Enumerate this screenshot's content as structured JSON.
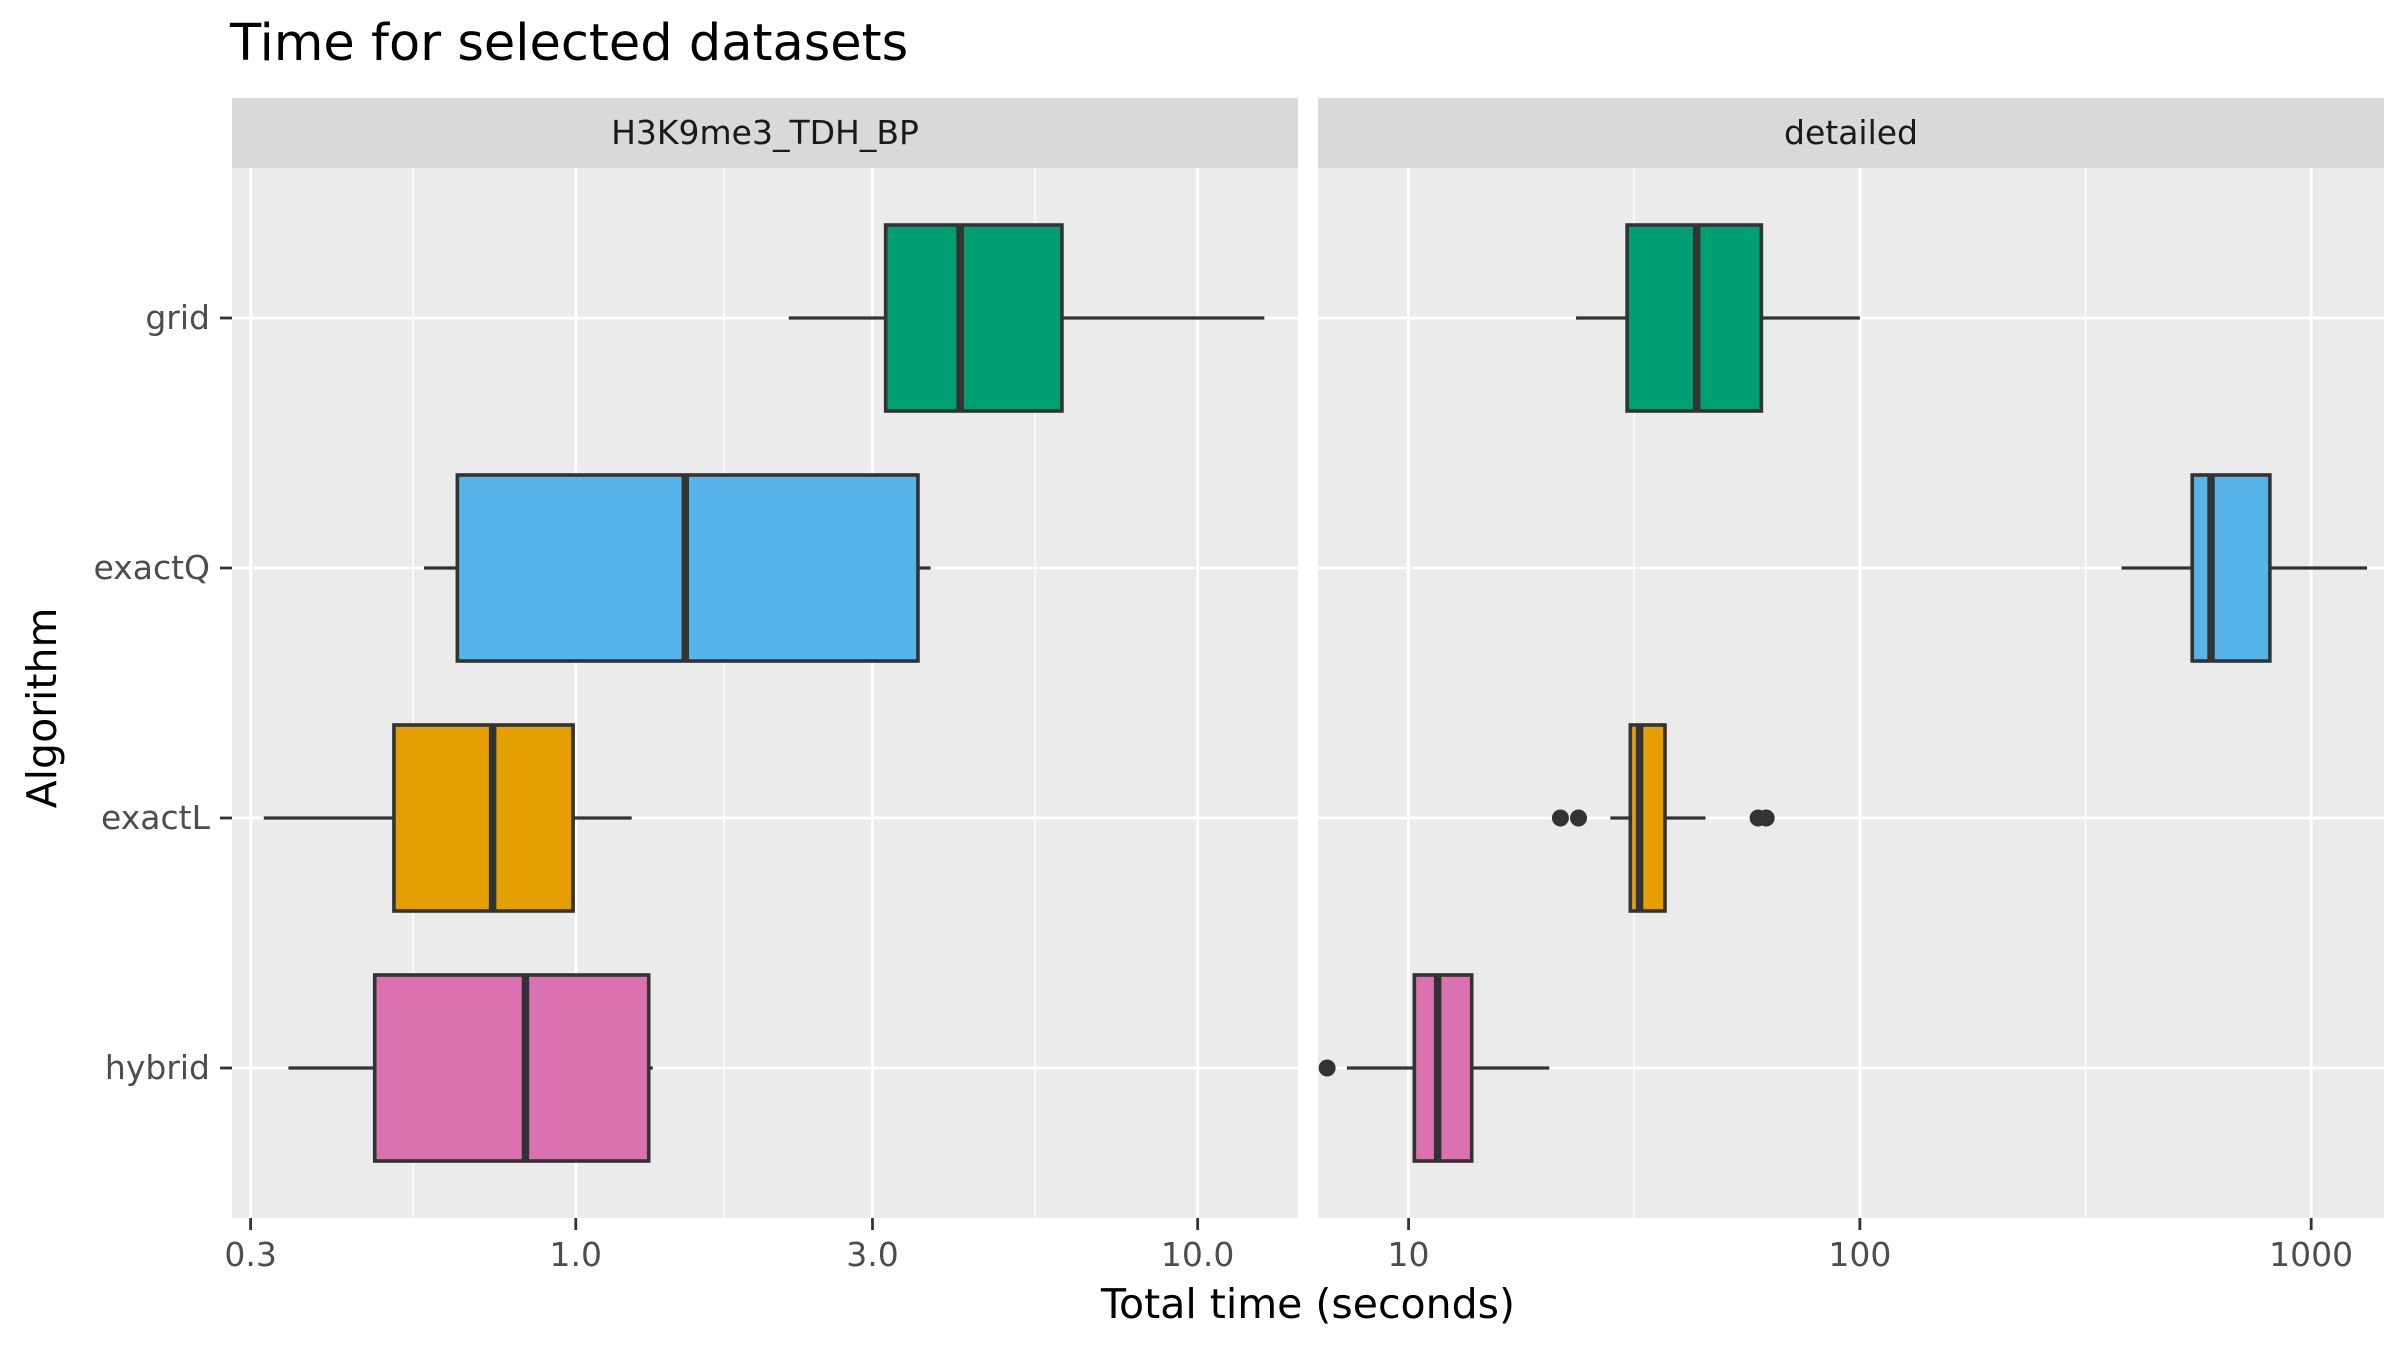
{
  "chart_data": {
    "type": "boxplot",
    "title": "Time for selected datasets",
    "xlabel": "Total time (seconds)",
    "ylabel": "Algorithm",
    "x_scale": "log10",
    "grid": true,
    "legend": "none",
    "categories": [
      "grid",
      "exactQ",
      "exactL",
      "hybrid"
    ],
    "colors": {
      "grid": "#009E73",
      "exactQ": "#56B4E9",
      "exactL": "#E69F00",
      "hybrid": "#DB72B0"
    },
    "panels": [
      {
        "strip": "H3K9me3_TDH_BP",
        "xlim": [
          0.28,
          14.5
        ],
        "x_ticks": [
          0.3,
          1.0,
          3.0,
          10.0
        ],
        "x_tick_labels": [
          "0.3",
          "1.0",
          "3.0",
          "10.0"
        ],
        "boxes": [
          {
            "category": "grid",
            "min": 2.2,
            "q1": 3.15,
            "median": 4.15,
            "q3": 6.05,
            "max": 12.8,
            "outliers": []
          },
          {
            "category": "exactQ",
            "min": 0.57,
            "q1": 0.645,
            "median": 1.5,
            "q3": 3.55,
            "max": 3.72,
            "outliers": []
          },
          {
            "category": "exactL",
            "min": 0.315,
            "q1": 0.51,
            "median": 0.735,
            "q3": 0.99,
            "max": 1.23,
            "outliers": []
          },
          {
            "category": "hybrid",
            "min": 0.345,
            "q1": 0.475,
            "median": 0.83,
            "q3": 1.31,
            "max": 1.33,
            "outliers": []
          }
        ]
      },
      {
        "strip": "detailed",
        "xlim": [
          6.3,
          1450
        ],
        "x_ticks": [
          10,
          100,
          1000
        ],
        "x_tick_labels": [
          "10",
          "100",
          "1000"
        ],
        "boxes": [
          {
            "category": "grid",
            "min": 23.5,
            "q1": 30.5,
            "median": 43.5,
            "q3": 60.5,
            "max": 100,
            "outliers": []
          },
          {
            "category": "exactQ",
            "min": 380,
            "q1": 545,
            "median": 600,
            "q3": 810,
            "max": 1330,
            "outliers": []
          },
          {
            "category": "exactL",
            "min": 28,
            "q1": 31,
            "median": 32.5,
            "q3": 37,
            "max": 45.5,
            "outliers": [
              21.7,
              23.8,
              59.5,
              62
            ]
          },
          {
            "category": "hybrid",
            "min": 7.3,
            "q1": 10.3,
            "median": 11.6,
            "q3": 13.8,
            "max": 20.5,
            "outliers": [
              6.6
            ]
          }
        ]
      }
    ]
  }
}
